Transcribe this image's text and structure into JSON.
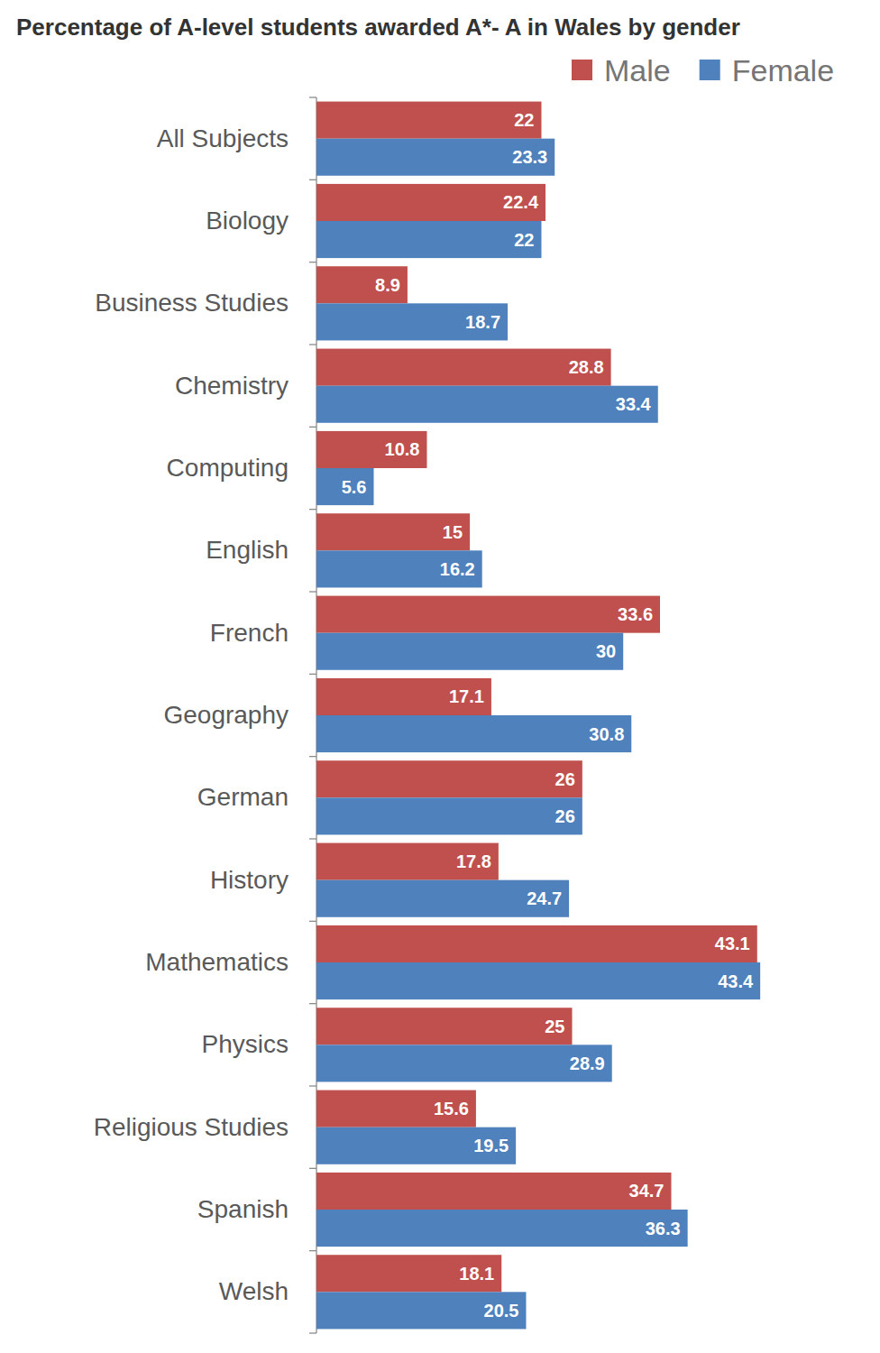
{
  "chart_data": {
    "type": "bar",
    "title": "Percentage of A-level students awarded A*- A in Wales by gender",
    "orientation": "horizontal",
    "categories": [
      "All Subjects",
      "Biology",
      "Business Studies",
      "Chemistry",
      "Computing",
      "English",
      "French",
      "Geography",
      "German",
      "History",
      "Mathematics",
      "Physics",
      "Religious Studies",
      "Spanish",
      "Welsh"
    ],
    "series": [
      {
        "name": "Male",
        "color": "#c0504d",
        "values": [
          22,
          22.4,
          8.9,
          28.8,
          10.8,
          15,
          33.6,
          17.1,
          26,
          17.8,
          43.1,
          25,
          15.6,
          34.7,
          18.1
        ]
      },
      {
        "name": "Female",
        "color": "#4f81bd",
        "values": [
          23.3,
          22,
          18.7,
          33.4,
          5.6,
          16.2,
          30,
          30.8,
          26,
          24.7,
          43.4,
          28.9,
          19.5,
          36.3,
          20.5
        ]
      }
    ],
    "xlim": [
      0,
      50
    ],
    "data_labels": true,
    "tick_labels": "y",
    "legend": "top-right",
    "grid": false
  }
}
